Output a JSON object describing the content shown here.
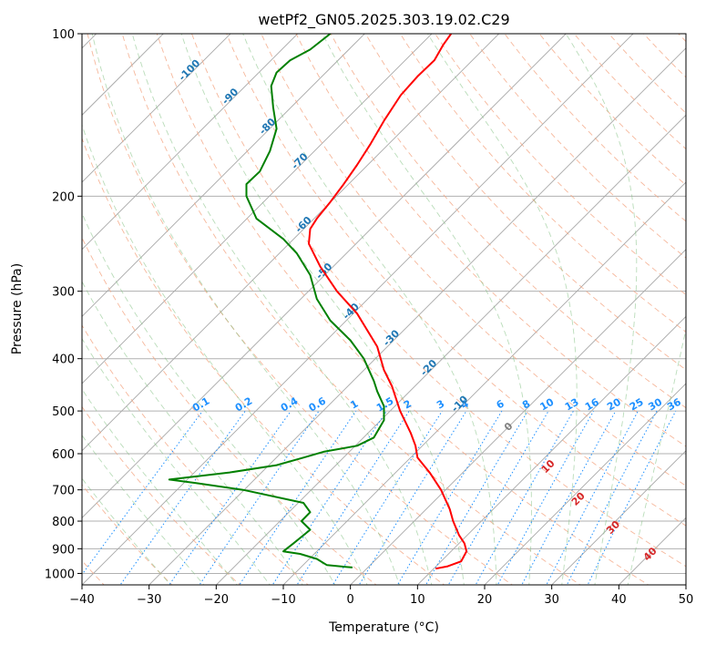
{
  "chart_data": {
    "type": "skew-t",
    "title": "wetPf2_GN05.2025.303.19.02.C29",
    "xlabel": "Temperature (°C)",
    "ylabel": "Pressure (hPa)",
    "xlim": [
      -40,
      50
    ],
    "ylim": [
      1050,
      100
    ],
    "y_scale": "log",
    "grid": true,
    "x_ticks": [
      -40,
      -30,
      -20,
      -10,
      0,
      10,
      20,
      30,
      40,
      50
    ],
    "x_tick_labels": [
      "−40",
      "−30",
      "−20",
      "−10",
      "0",
      "10",
      "20",
      "30",
      "40",
      "50"
    ],
    "y_ticks": [
      100,
      200,
      300,
      400,
      500,
      600,
      700,
      800,
      900,
      1000
    ],
    "y_tick_labels": [
      "100",
      "200",
      "300",
      "400",
      "500",
      "600",
      "700",
      "800",
      "900",
      "1000"
    ],
    "isotherm_labels": [
      "-100",
      "-90",
      "-80",
      "-70",
      "-60",
      "-50",
      "-40",
      "-30",
      "-20",
      "-10"
    ],
    "isotherm_label_values": [
      -100,
      -90,
      -80,
      -70,
      -60,
      -50,
      -40,
      -30,
      -20,
      -10
    ],
    "mixing_ratio_labels": [
      "0.1",
      "0.2",
      "0.4",
      "0.6",
      "1",
      "1.5",
      "2",
      "3",
      "4",
      "6",
      "8",
      "10",
      "13",
      "16",
      "20",
      "25",
      "30",
      "36"
    ],
    "mixing_ratio_values": [
      0.1,
      0.2,
      0.4,
      0.6,
      1,
      1.5,
      2,
      3,
      4,
      6,
      8,
      10,
      13,
      16,
      20,
      25,
      30,
      36
    ],
    "dry_adiabat_labels": [
      "0",
      "10",
      "20",
      "30",
      "40"
    ],
    "dry_adiabat_label_points": [
      {
        "label": "0",
        "temp": 23.9,
        "pressure": 540
      },
      {
        "label": "10",
        "temp": 29.8,
        "pressure": 640
      },
      {
        "label": "20",
        "temp": 34.3,
        "pressure": 735
      },
      {
        "label": "30",
        "temp": 39.5,
        "pressure": 830
      },
      {
        "label": "40",
        "temp": 45.0,
        "pressure": 930
      }
    ],
    "series": [
      {
        "name": "",
        "role": "temperature",
        "color": "#ff0000",
        "points": [
          [
            12.7,
            980
          ],
          [
            14.5,
            970
          ],
          [
            16.5,
            950
          ],
          [
            17.3,
            910
          ],
          [
            17.0,
            880
          ],
          [
            16.2,
            850
          ],
          [
            15.3,
            800
          ],
          [
            14.8,
            760
          ],
          [
            13.5,
            700
          ],
          [
            11.8,
            650
          ],
          [
            10.0,
            610
          ],
          [
            9.7,
            580
          ],
          [
            9.0,
            550
          ],
          [
            7.4,
            500
          ],
          [
            6.2,
            450
          ],
          [
            5.0,
            420
          ],
          [
            4.0,
            380
          ],
          [
            1.0,
            330
          ],
          [
            -2.0,
            300
          ],
          [
            -4.5,
            270
          ],
          [
            -6.2,
            245
          ],
          [
            -6.0,
            230
          ],
          [
            -5.0,
            220
          ],
          [
            -3.0,
            205
          ],
          [
            -1.0,
            190
          ],
          [
            1.0,
            175
          ],
          [
            3.0,
            160
          ],
          [
            5.0,
            145
          ],
          [
            7.5,
            130
          ],
          [
            10.0,
            120
          ],
          [
            12.5,
            112
          ],
          [
            13.8,
            105
          ],
          [
            15.0,
            100
          ]
        ]
      },
      {
        "name": "",
        "role": "dewpoint",
        "color": "#008000",
        "points": [
          [
            0.3,
            975
          ],
          [
            -3.5,
            965
          ],
          [
            -5.0,
            940
          ],
          [
            -7.5,
            920
          ],
          [
            -10.0,
            910
          ],
          [
            -8.5,
            880
          ],
          [
            -6.0,
            830
          ],
          [
            -7.3,
            800
          ],
          [
            -6.0,
            770
          ],
          [
            -7.0,
            740
          ],
          [
            -16.0,
            700
          ],
          [
            -23.0,
            680
          ],
          [
            -27.0,
            670
          ],
          [
            -18.0,
            650
          ],
          [
            -11.0,
            630
          ],
          [
            -7.0,
            610
          ],
          [
            -4.0,
            595
          ],
          [
            1.0,
            580
          ],
          [
            3.5,
            560
          ],
          [
            5.0,
            520
          ],
          [
            5.0,
            490
          ],
          [
            4.0,
            460
          ],
          [
            3.5,
            440
          ],
          [
            2.0,
            400
          ],
          [
            0.0,
            370
          ],
          [
            -3.0,
            340
          ],
          [
            -5.0,
            310
          ],
          [
            -6.0,
            280
          ],
          [
            -8.0,
            255
          ],
          [
            -10.0,
            240
          ],
          [
            -14.0,
            220
          ],
          [
            -15.5,
            200
          ],
          [
            -15.5,
            190
          ],
          [
            -13.5,
            180
          ],
          [
            -12.0,
            165
          ],
          [
            -11.0,
            150
          ],
          [
            -11.5,
            137
          ],
          [
            -11.8,
            125
          ],
          [
            -11.0,
            118
          ],
          [
            -9.0,
            112
          ],
          [
            -6.0,
            107
          ],
          [
            -3.0,
            100
          ]
        ]
      }
    ]
  }
}
